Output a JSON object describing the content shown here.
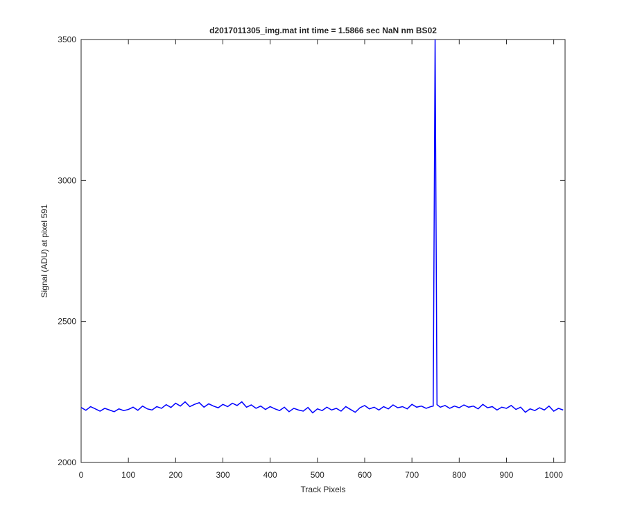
{
  "chart_data": {
    "type": "line",
    "title": "d2017011305_img.mat int time = 1.5866 sec  NaN nm BS02",
    "x_label": "Track Pixels",
    "y_label": "Signal (ADU) at pixel 591",
    "xlim": [
      0,
      1024
    ],
    "ylim": [
      2000,
      3500
    ],
    "xticks": [
      0,
      100,
      200,
      300,
      400,
      500,
      600,
      700,
      800,
      900,
      1000
    ],
    "yticks": [
      2000,
      2500,
      3000,
      3500
    ],
    "grid": false,
    "x": [
      0,
      10,
      20,
      30,
      40,
      50,
      60,
      70,
      80,
      90,
      100,
      110,
      120,
      130,
      140,
      150,
      160,
      170,
      180,
      190,
      200,
      210,
      220,
      230,
      240,
      250,
      260,
      270,
      280,
      290,
      300,
      310,
      320,
      330,
      340,
      350,
      360,
      370,
      380,
      390,
      400,
      410,
      420,
      430,
      440,
      450,
      460,
      470,
      480,
      490,
      500,
      510,
      520,
      530,
      540,
      550,
      560,
      570,
      580,
      590,
      600,
      610,
      620,
      630,
      640,
      650,
      660,
      670,
      680,
      690,
      700,
      710,
      720,
      730,
      740,
      745,
      749,
      753,
      760,
      770,
      780,
      790,
      800,
      810,
      820,
      830,
      840,
      850,
      860,
      870,
      880,
      890,
      900,
      910,
      920,
      930,
      940,
      950,
      960,
      970,
      980,
      990,
      1000,
      1010,
      1020
    ],
    "series": [
      {
        "name": "signal",
        "color": "#0000ff",
        "values": [
          2195,
          2185,
          2198,
          2190,
          2182,
          2192,
          2186,
          2180,
          2190,
          2184,
          2188,
          2196,
          2185,
          2200,
          2190,
          2186,
          2198,
          2192,
          2205,
          2195,
          2210,
          2200,
          2215,
          2198,
          2206,
          2212,
          2196,
          2208,
          2200,
          2194,
          2206,
          2198,
          2210,
          2202,
          2215,
          2196,
          2204,
          2192,
          2200,
          2188,
          2198,
          2190,
          2184,
          2196,
          2180,
          2192,
          2186,
          2182,
          2195,
          2176,
          2190,
          2184,
          2196,
          2186,
          2192,
          2182,
          2198,
          2188,
          2178,
          2194,
          2202,
          2190,
          2196,
          2186,
          2198,
          2190,
          2204,
          2194,
          2198,
          2190,
          2206,
          2196,
          2200,
          2192,
          2198,
          2200,
          3500,
          2205,
          2196,
          2202,
          2192,
          2200,
          2194,
          2204,
          2196,
          2200,
          2190,
          2206,
          2194,
          2198,
          2186,
          2196,
          2192,
          2202,
          2188,
          2196,
          2178,
          2190,
          2184,
          2194,
          2186,
          2200,
          2182,
          2192,
          2186
        ]
      }
    ]
  }
}
